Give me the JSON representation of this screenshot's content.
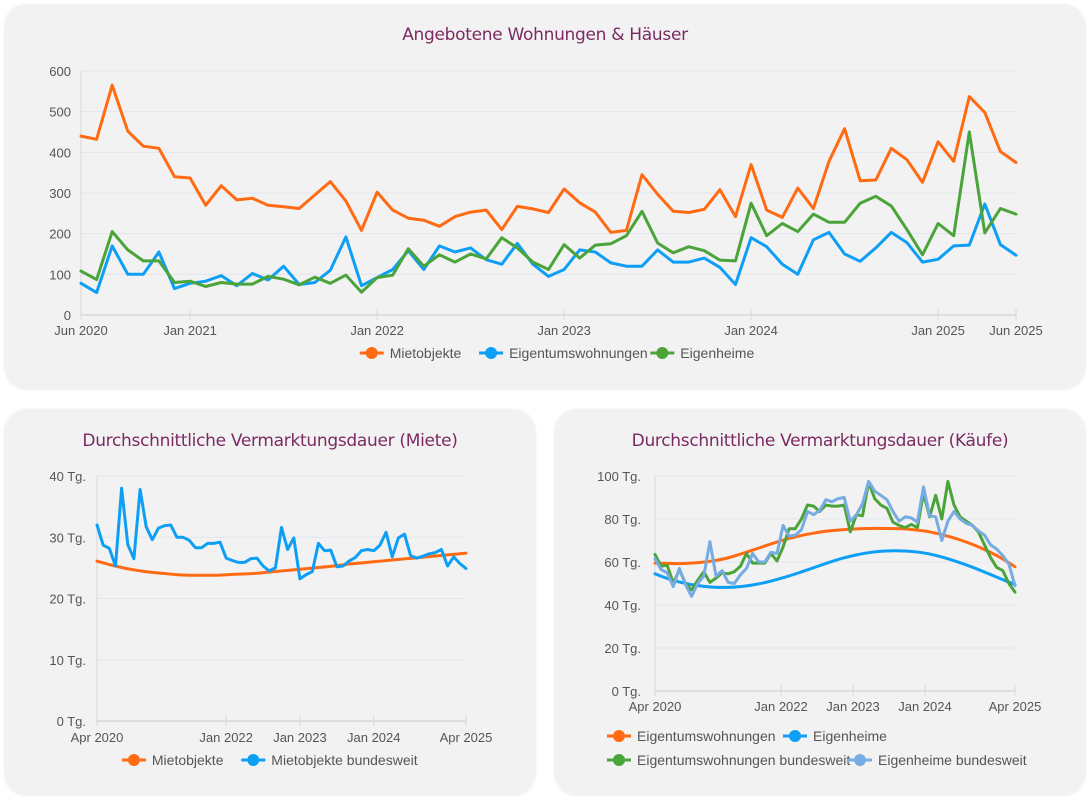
{
  "charts": [
    {
      "title": "Angebotene Wohnungen & Häuser",
      "type": "line",
      "y_ticks": [
        "0",
        "100",
        "200",
        "300",
        "400",
        "500",
        "600"
      ],
      "x_ticks": [
        "Jun 2020",
        "Jan 2021",
        "Jan 2022",
        "Jan 2023",
        "Jan 2024",
        "Jan 2025",
        "Jun 2025"
      ],
      "legend": [
        "Mietobjekte",
        "Eigentumswohnungen",
        "Eigenheime"
      ]
    },
    {
      "title": "Durchschnittliche Vermarktungsdauer (Miete)",
      "type": "line",
      "y_ticks": [
        "0 Tg.",
        "10 Tg.",
        "20 Tg.",
        "30 Tg.",
        "40 Tg."
      ],
      "x_ticks": [
        "Apr 2020",
        "Jan 2022",
        "Jan 2023",
        "Jan 2024",
        "Apr 2025"
      ],
      "legend": [
        "Mietobjekte",
        "Mietobjekte bundesweit"
      ]
    },
    {
      "title": "Durchschnittliche Vermarktungsdauer (Käufe)",
      "type": "line",
      "y_ticks": [
        "0 Tg.",
        "20 Tg.",
        "40 Tg.",
        "60 Tg.",
        "80 Tg.",
        "100 Tg."
      ],
      "x_ticks": [
        "Apr 2020",
        "Jan 2022",
        "Jan 2023",
        "Jan 2024",
        "Apr 2025"
      ],
      "legend": [
        "Eigentumswohnungen",
        "Eigenheime",
        "Eigentumswohnungen bundesweit",
        "Eigenheime bundesweit"
      ]
    }
  ],
  "chart_data": [
    {
      "type": "line",
      "title": "Angebotene Wohnungen & Häuser",
      "xlabel": "",
      "ylabel": "",
      "x_range": [
        "Jun 2020",
        "Jun 2025"
      ],
      "x_tick_positions": [
        0,
        7,
        19,
        31,
        43,
        55,
        60
      ],
      "ylim": [
        0,
        600
      ],
      "grid": true,
      "legend_position": "bottom",
      "x_index_unit": "months since Jun 2020 (approx.)",
      "series": [
        {
          "name": "Mietobjekte",
          "color": "#ff6a13",
          "values": [
            440,
            432,
            565,
            452,
            415,
            410,
            340,
            337,
            270,
            318,
            283,
            287,
            270,
            266,
            262,
            295,
            328,
            280,
            208,
            302,
            258,
            238,
            233,
            218,
            242,
            253,
            258,
            210,
            267,
            261,
            252,
            310,
            276,
            253,
            203,
            208,
            345,
            297,
            255,
            252,
            260,
            308,
            242,
            370,
            258,
            240,
            312,
            262,
            378,
            458,
            330,
            332,
            410,
            382,
            326,
            426,
            378,
            537,
            498,
            402,
            375
          ]
        },
        {
          "name": "Eigentumswohnungen",
          "color": "#0d9ff5",
          "values": [
            78,
            55,
            170,
            100,
            100,
            155,
            65,
            78,
            83,
            97,
            72,
            102,
            86,
            120,
            75,
            80,
            110,
            192,
            72,
            92,
            112,
            158,
            112,
            170,
            155,
            165,
            136,
            125,
            176,
            125,
            95,
            112,
            160,
            155,
            128,
            120,
            120,
            160,
            130,
            130,
            140,
            117,
            75,
            190,
            168,
            125,
            100,
            185,
            203,
            150,
            132,
            165,
            203,
            178,
            130,
            137,
            170,
            172,
            273,
            173,
            147
          ]
        },
        {
          "name": "Eigenheime",
          "color": "#4aa43a",
          "values": [
            108,
            87,
            205,
            160,
            133,
            133,
            80,
            83,
            70,
            80,
            76,
            76,
            95,
            88,
            74,
            93,
            78,
            98,
            56,
            92,
            98,
            163,
            120,
            148,
            130,
            150,
            138,
            190,
            165,
            130,
            112,
            173,
            140,
            172,
            175,
            195,
            255,
            177,
            153,
            168,
            158,
            135,
            133,
            275,
            195,
            225,
            205,
            248,
            228,
            228,
            275,
            292,
            268,
            210,
            148,
            225,
            195,
            450,
            202,
            262,
            248
          ]
        }
      ]
    },
    {
      "type": "line",
      "title": "Durchschnittliche Vermarktungsdauer (Miete)",
      "xlabel": "",
      "ylabel": "",
      "x_range": [
        "Apr 2020",
        "Apr 2025"
      ],
      "x_tick_positions": [
        0,
        21,
        33,
        45,
        60
      ],
      "ylim": [
        0,
        40
      ],
      "y_unit": "Tg.",
      "grid": true,
      "legend_position": "bottom",
      "x_index_unit": "months since Apr 2020",
      "series": [
        {
          "name": "Mietobjekte",
          "color": "#ff6a13",
          "smooth": true,
          "values": [
            26.1,
            25.5,
            25.0,
            24.6,
            24.3,
            24.1,
            23.9,
            23.8,
            23.8,
            23.8,
            23.9,
            24.0,
            24.1,
            24.3,
            24.5,
            24.7,
            24.9,
            25.1,
            25.3,
            25.6,
            25.8,
            26.0,
            26.2,
            26.4,
            26.6,
            26.8,
            27.0,
            27.2,
            27.4
          ]
        },
        {
          "name": "Mietobjekte bundesweit",
          "color": "#0d9ff5",
          "values": [
            32.0,
            28.7,
            28.2,
            25.3,
            38.0,
            28.8,
            26.5,
            37.8,
            31.7,
            29.6,
            31.5,
            31.9,
            32.0,
            30.0,
            30.0,
            29.5,
            28.3,
            28.3,
            29.0,
            29.0,
            29.2,
            26.6,
            26.2,
            25.9,
            25.9,
            26.5,
            26.6,
            25.3,
            24.5,
            25.0,
            31.6,
            28.0,
            29.9,
            23.2,
            23.9,
            24.4,
            29.0,
            27.8,
            27.9,
            25.2,
            25.3,
            26.1,
            26.7,
            27.8,
            28.0,
            27.8,
            28.7,
            30.8,
            26.8,
            29.9,
            30.5,
            27.0,
            26.6,
            26.9,
            27.3,
            27.5,
            28.0,
            25.3,
            26.8,
            25.7,
            24.9
          ]
        }
      ]
    },
    {
      "type": "line",
      "title": "Durchschnittliche Vermarktungsdauer (Käufe)",
      "xlabel": "",
      "ylabel": "",
      "x_range": [
        "Apr 2020",
        "Apr 2025"
      ],
      "x_tick_positions": [
        0,
        21,
        33,
        45,
        60
      ],
      "ylim": [
        0,
        100
      ],
      "y_unit": "Tg.",
      "grid": true,
      "legend_position": "bottom",
      "x_index_unit": "months since Apr 2020",
      "series": [
        {
          "name": "Eigentumswohnungen",
          "color": "#ff6a13",
          "smooth": true,
          "values": [
            59.5,
            59.3,
            59.3,
            59.7,
            60.5,
            61.8,
            63.8,
            66.0,
            68.3,
            70.4,
            72.1,
            73.4,
            74.4,
            75.0,
            75.4,
            75.6,
            75.6,
            75.5,
            75.0,
            74.1,
            72.6,
            70.7,
            68.3,
            65.4,
            62.0,
            57.8
          ]
        },
        {
          "name": "Eigenheime",
          "color": "#0d9ff5",
          "smooth": true,
          "values": [
            54.5,
            52.0,
            50.2,
            49.0,
            48.3,
            48.2,
            48.6,
            49.6,
            51.0,
            52.9,
            55.0,
            57.3,
            59.6,
            61.7,
            63.3,
            64.5,
            65.1,
            65.2,
            64.8,
            63.8,
            62.2,
            60.1,
            57.7,
            55.0,
            52.2,
            49.5
          ]
        },
        {
          "name": "Eigentumswohnungen bundesweit",
          "color": "#4aa43a",
          "values": [
            63.5,
            58.0,
            58.5,
            50.0,
            56.5,
            50.0,
            47.0,
            51.5,
            55.5,
            50.5,
            52.5,
            55.0,
            54.5,
            55.5,
            58.0,
            64.0,
            59.5,
            59.5,
            59.5,
            64.0,
            60.5,
            67.0,
            75.5,
            75.5,
            80.0,
            86.5,
            86.0,
            83.5,
            86.5,
            86.0,
            86.0,
            86.5,
            74.0,
            82.0,
            81.5,
            97.0,
            89.5,
            86.5,
            85.0,
            78.5,
            77.0,
            76.0,
            77.5,
            76.0,
            92.0,
            81.0,
            91.0,
            80.0,
            97.5,
            86.5,
            81.0,
            79.0,
            77.0,
            74.0,
            68.0,
            62.0,
            57.5,
            56.0,
            50.0,
            46.0
          ]
        },
        {
          "name": "Eigenheime bundesweit",
          "color": "#76ace3",
          "values": [
            61.5,
            56.5,
            55.0,
            48.5,
            57.0,
            49.5,
            44.0,
            50.0,
            53.5,
            69.5,
            53.5,
            56.0,
            50.5,
            50.0,
            54.0,
            57.0,
            64.0,
            60.0,
            60.0,
            64.5,
            64.0,
            77.0,
            72.0,
            72.5,
            75.0,
            83.5,
            82.0,
            84.0,
            89.0,
            88.0,
            89.5,
            90.0,
            79.0,
            82.0,
            87.0,
            97.5,
            93.0,
            91.0,
            89.0,
            83.5,
            79.0,
            81.0,
            80.5,
            78.5,
            95.0,
            81.5,
            81.0,
            70.0,
            79.0,
            83.5,
            80.0,
            78.0,
            77.0,
            74.5,
            72.5,
            68.0,
            66.0,
            63.0,
            59.0,
            49.0
          ]
        }
      ]
    }
  ]
}
